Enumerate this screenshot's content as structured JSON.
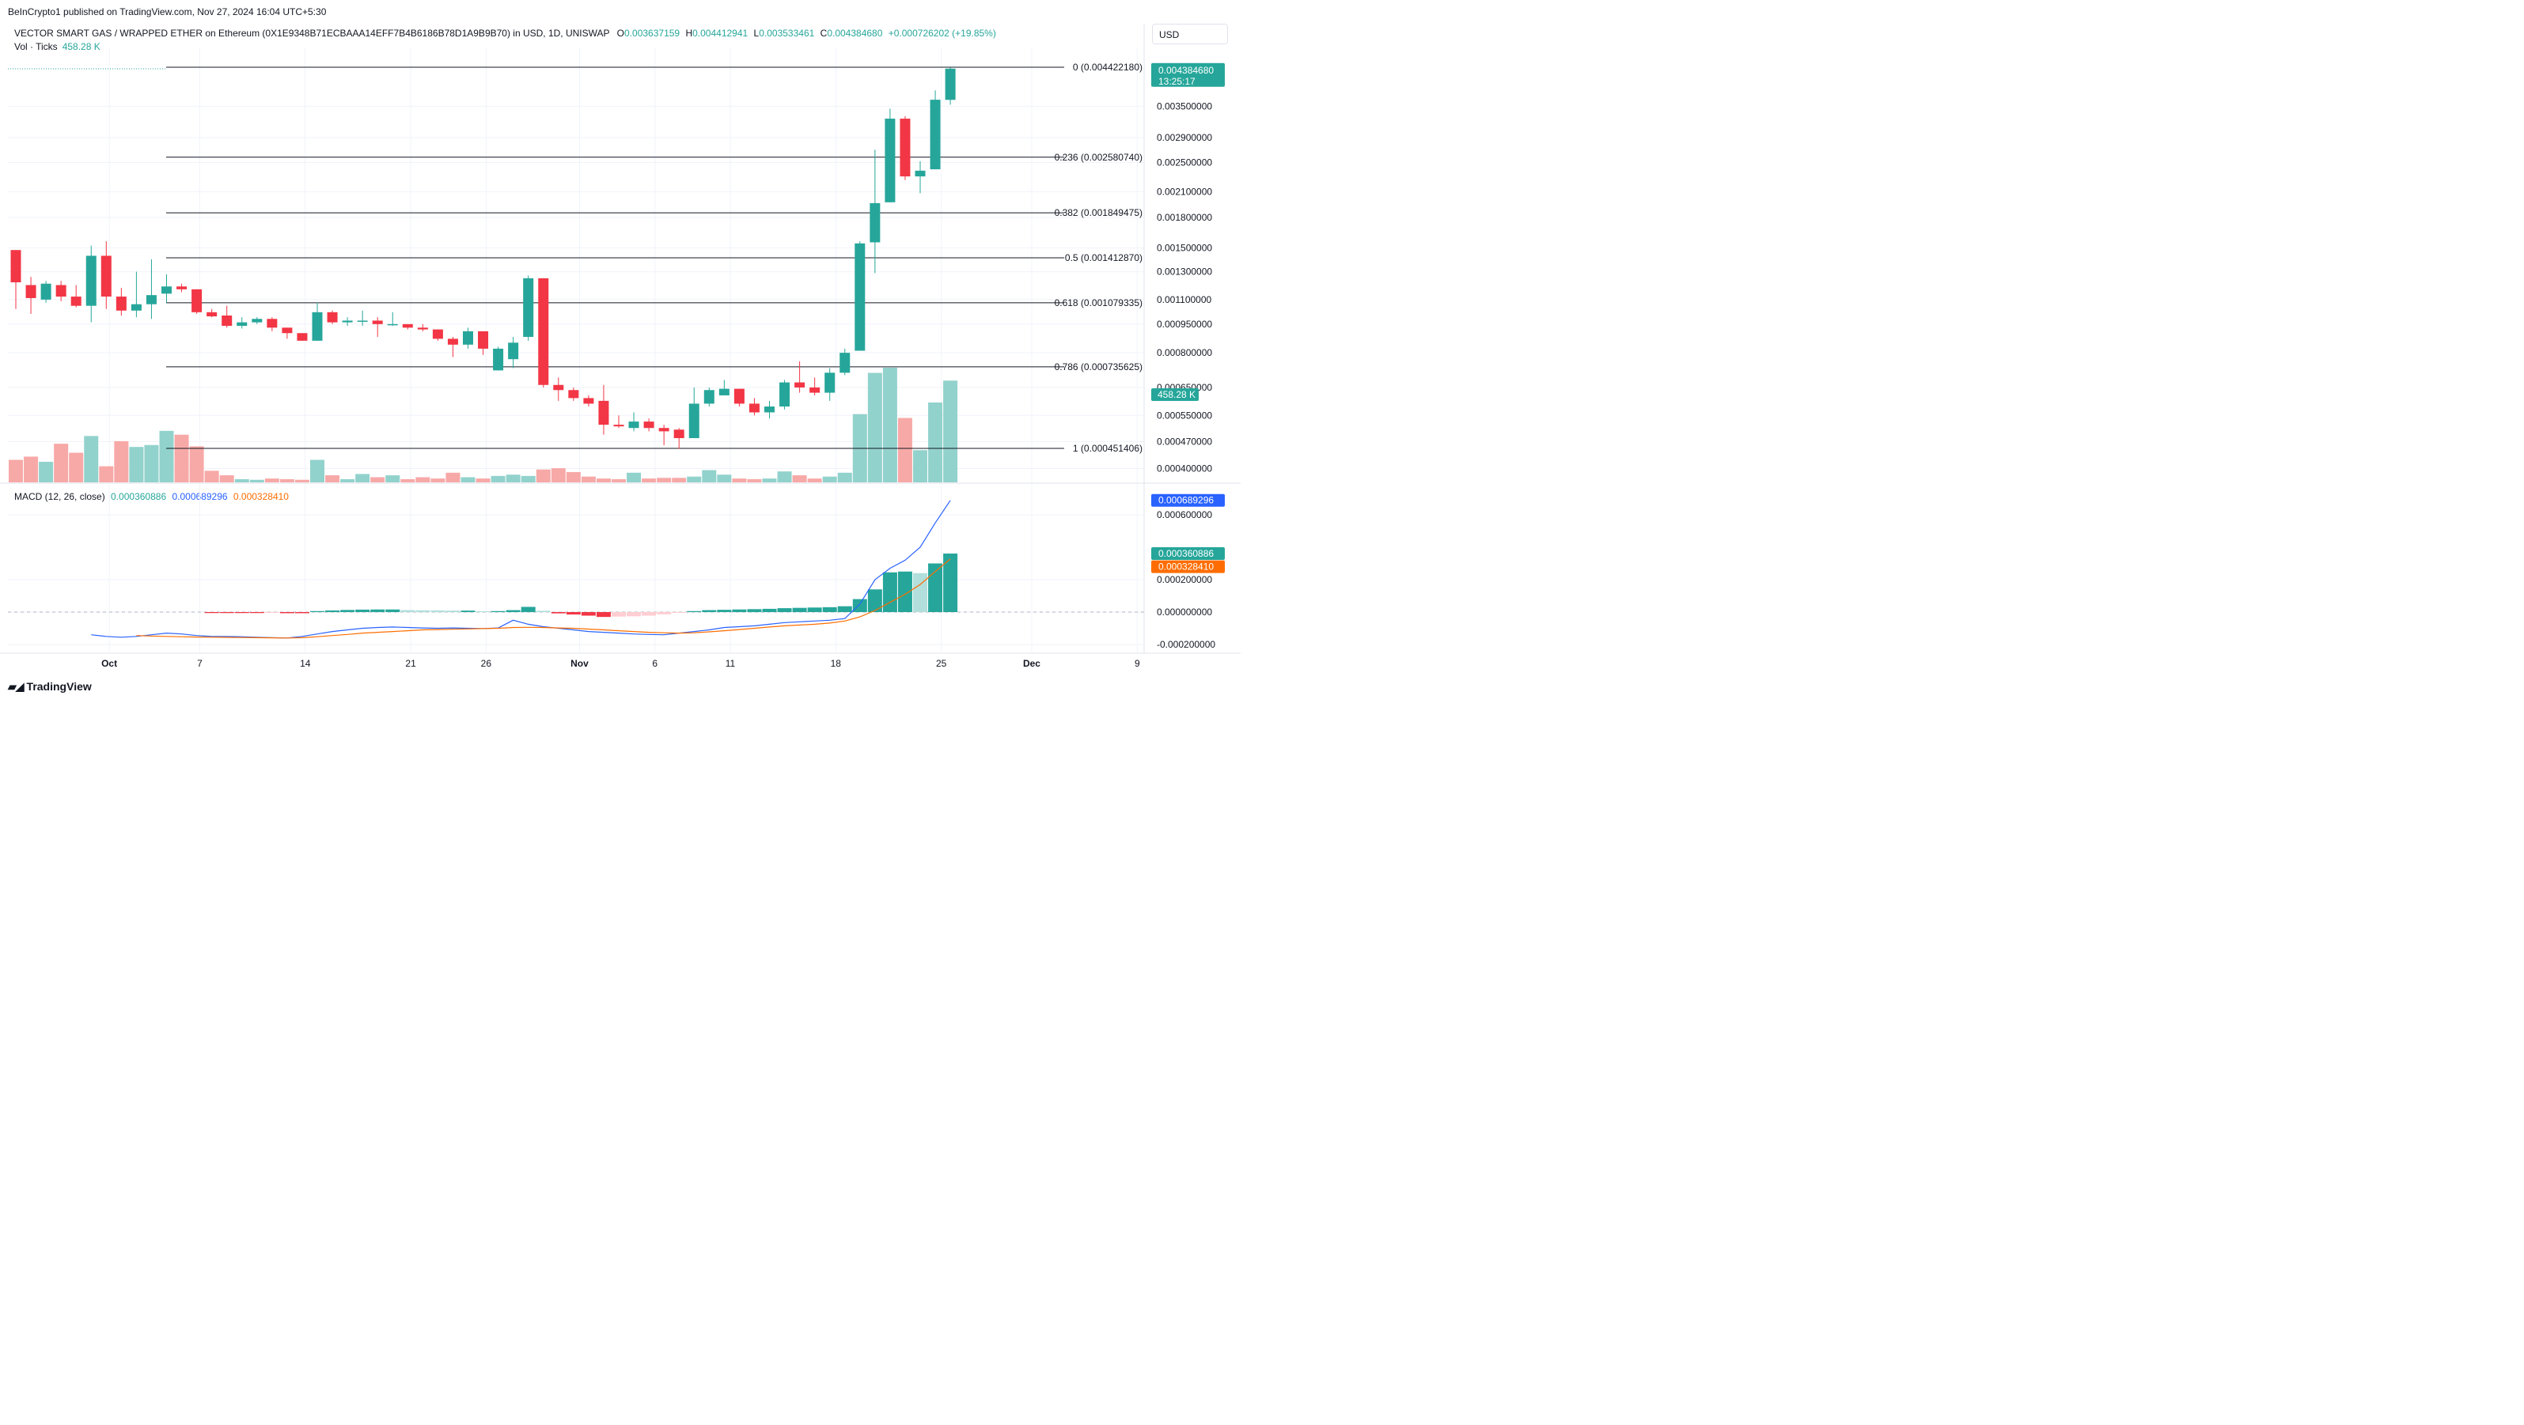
{
  "header": {
    "publisher": "BeInCrypto1 published on TradingView.com, Nov 27, 2024 16:04 UTC+5:30",
    "symbol": "VECTOR SMART GAS / WRAPPED ETHER on Ethereum (0X1E9348B71ECBAAA14EFF7B4B6186B78D1A9B9B70) in USD, 1D, UNISWAP",
    "ohlc": {
      "o_label": "O",
      "o_value": "0.003637159",
      "h_label": "H",
      "h_value": "0.004412941",
      "l_label": "L",
      "l_value": "0.003533461",
      "c_label": "C",
      "c_value": "0.004384680",
      "change": "+0.000726202 (+19.85%)"
    },
    "vol_label": "Vol · Ticks",
    "vol_value": "458.28 K",
    "currency": "USD"
  },
  "macd_legend": {
    "label": "MACD (12, 26, close)",
    "hist_value": "0.000360886",
    "macd_value": "0.000689296",
    "signal_value": "0.000328410"
  },
  "brand": "TradingView",
  "colors": {
    "up": "#26a69a",
    "down": "#f23645",
    "vol_up": "#92d2cc",
    "vol_down": "#f7a9a7",
    "macd": "#2962ff",
    "signal": "#ff6d00",
    "grid": "#f0f3fa",
    "fib": "#131722"
  },
  "chart_data": [
    {
      "type": "candlestick",
      "price_axis_labels": [
        "0.003500000",
        "0.002900000",
        "0.002500000",
        "0.002100000",
        "0.001800000",
        "0.001500000",
        "0.001300000",
        "0.001100000",
        "0.000950000",
        "0.000800000",
        "0.000650000",
        "0.000550000",
        "0.000470000",
        "0.000400000"
      ],
      "x_tick_labels": [
        "Oct",
        "7",
        "14",
        "21",
        "26",
        "Nov",
        "6",
        "11",
        "18",
        "25",
        "Dec",
        "9"
      ],
      "last_price_badge": "0.004384680",
      "countdown": "13:25:17",
      "volume_badge": "458.28 K",
      "fib_levels": [
        {
          "label": "0 (0.004422180)",
          "value": 0.00442218
        },
        {
          "label": "0.236 (0.002580740)",
          "value": 0.00258074
        },
        {
          "label": "0.382 (0.001849475)",
          "value": 0.001849475
        },
        {
          "label": "0.5 (0.001412870)",
          "value": 0.00141287
        },
        {
          "label": "0.618 (0.001079335)",
          "value": 0.001079335
        },
        {
          "label": "0.786 (0.000735625)",
          "value": 0.000735625
        },
        {
          "label": "1 (0.000451406)",
          "value": 0.000451406
        }
      ],
      "candles": [
        {
          "o": 0.00148,
          "h": 0.00148,
          "l": 0.00104,
          "c": 0.00122
        },
        {
          "o": 0.0012,
          "h": 0.00126,
          "l": 0.00101,
          "c": 0.00111
        },
        {
          "o": 0.0011,
          "h": 0.00123,
          "l": 0.00108,
          "c": 0.00121
        },
        {
          "o": 0.0012,
          "h": 0.00123,
          "l": 0.00109,
          "c": 0.00112
        },
        {
          "o": 0.00112,
          "h": 0.0012,
          "l": 0.00105,
          "c": 0.00106
        },
        {
          "o": 0.00106,
          "h": 0.00152,
          "l": 0.00096,
          "c": 0.00143
        },
        {
          "o": 0.00143,
          "h": 0.00156,
          "l": 0.00104,
          "c": 0.00112
        },
        {
          "o": 0.00112,
          "h": 0.00118,
          "l": 0.001,
          "c": 0.00103
        },
        {
          "o": 0.00103,
          "h": 0.0013,
          "l": 0.00099,
          "c": 0.00107
        },
        {
          "o": 0.00107,
          "h": 0.0014,
          "l": 0.00098,
          "c": 0.00113
        },
        {
          "o": 0.00114,
          "h": 0.00128,
          "l": 0.00108,
          "c": 0.00119
        },
        {
          "o": 0.00119,
          "h": 0.00121,
          "l": 0.00115,
          "c": 0.00117
        },
        {
          "o": 0.00117,
          "h": 0.00117,
          "l": 0.00101,
          "c": 0.00102
        },
        {
          "o": 0.00102,
          "h": 0.00104,
          "l": 0.00099,
          "c": 0.000995
        },
        {
          "o": 0.001,
          "h": 0.00106,
          "l": 0.00093,
          "c": 0.00094
        },
        {
          "o": 0.00094,
          "h": 0.00099,
          "l": 0.000925,
          "c": 0.00096
        },
        {
          "o": 0.00096,
          "h": 0.00099,
          "l": 0.00095,
          "c": 0.00098
        },
        {
          "o": 0.00098,
          "h": 0.00099,
          "l": 0.00091,
          "c": 0.00093
        },
        {
          "o": 0.00093,
          "h": 0.00093,
          "l": 0.00087,
          "c": 0.0009
        },
        {
          "o": 0.0009,
          "h": 0.0009,
          "l": 0.00086,
          "c": 0.00086
        },
        {
          "o": 0.00086,
          "h": 0.00108,
          "l": 0.00086,
          "c": 0.00102
        },
        {
          "o": 0.00102,
          "h": 0.00103,
          "l": 0.00095,
          "c": 0.00096
        },
        {
          "o": 0.00096,
          "h": 0.00099,
          "l": 0.00094,
          "c": 0.00097
        },
        {
          "o": 0.00097,
          "h": 0.00103,
          "l": 0.00094,
          "c": 0.00097
        },
        {
          "o": 0.00097,
          "h": 0.00099,
          "l": 0.00088,
          "c": 0.00095
        },
        {
          "o": 0.00095,
          "h": 0.00102,
          "l": 0.00094,
          "c": 0.00095
        },
        {
          "o": 0.00095,
          "h": 0.00095,
          "l": 0.00092,
          "c": 0.00093
        },
        {
          "o": 0.00093,
          "h": 0.00095,
          "l": 0.00091,
          "c": 0.00092
        },
        {
          "o": 0.00092,
          "h": 0.00092,
          "l": 0.00086,
          "c": 0.00087
        },
        {
          "o": 0.00087,
          "h": 0.00088,
          "l": 0.00078,
          "c": 0.00084
        },
        {
          "o": 0.00084,
          "h": 0.00093,
          "l": 0.00082,
          "c": 0.00091
        },
        {
          "o": 0.00091,
          "h": 0.00091,
          "l": 0.00079,
          "c": 0.00082
        },
        {
          "o": 0.00072,
          "h": 0.00083,
          "l": 0.00072,
          "c": 0.00082
        },
        {
          "o": 0.00077,
          "h": 0.00088,
          "l": 0.00073,
          "c": 0.00085
        },
        {
          "o": 0.00088,
          "h": 0.00127,
          "l": 0.00086,
          "c": 0.00125
        },
        {
          "o": 0.00125,
          "h": 0.00125,
          "l": 0.00065,
          "c": 0.00066
        },
        {
          "o": 0.00066,
          "h": 0.00069,
          "l": 0.0006,
          "c": 0.00064
        },
        {
          "o": 0.00064,
          "h": 0.00065,
          "l": 0.0006,
          "c": 0.00061
        },
        {
          "o": 0.00061,
          "h": 0.00062,
          "l": 0.00058,
          "c": 0.00059
        },
        {
          "o": 0.0006,
          "h": 0.00066,
          "l": 0.00049,
          "c": 0.00052
        },
        {
          "o": 0.00052,
          "h": 0.00055,
          "l": 0.00051,
          "c": 0.000515
        },
        {
          "o": 0.00051,
          "h": 0.00056,
          "l": 0.0005,
          "c": 0.00053
        },
        {
          "o": 0.00053,
          "h": 0.00054,
          "l": 0.0005,
          "c": 0.00051
        },
        {
          "o": 0.00051,
          "h": 0.00052,
          "l": 0.00046,
          "c": 0.0005
        },
        {
          "o": 0.000505,
          "h": 0.00051,
          "l": 0.00045,
          "c": 0.00048
        },
        {
          "o": 0.00048,
          "h": 0.00065,
          "l": 0.00048,
          "c": 0.00059
        },
        {
          "o": 0.00059,
          "h": 0.00065,
          "l": 0.00058,
          "c": 0.00064
        },
        {
          "o": 0.00062,
          "h": 0.00068,
          "l": 0.00062,
          "c": 0.000645
        },
        {
          "o": 0.000645,
          "h": 0.000645,
          "l": 0.00058,
          "c": 0.00059
        },
        {
          "o": 0.00059,
          "h": 0.00061,
          "l": 0.00055,
          "c": 0.00056
        },
        {
          "o": 0.00056,
          "h": 0.0006,
          "l": 0.00054,
          "c": 0.00058
        },
        {
          "o": 0.00058,
          "h": 0.00068,
          "l": 0.00057,
          "c": 0.00067
        },
        {
          "o": 0.00067,
          "h": 0.00076,
          "l": 0.00063,
          "c": 0.00065
        },
        {
          "o": 0.00065,
          "h": 0.00069,
          "l": 0.00062,
          "c": 0.00063
        },
        {
          "o": 0.00063,
          "h": 0.00073,
          "l": 0.0006,
          "c": 0.00071
        },
        {
          "o": 0.00071,
          "h": 0.00082,
          "l": 0.0007,
          "c": 0.0008
        },
        {
          "o": 0.00081,
          "h": 0.00156,
          "l": 0.00081,
          "c": 0.00154
        },
        {
          "o": 0.00155,
          "h": 0.0027,
          "l": 0.00129,
          "c": 0.00196
        },
        {
          "o": 0.00197,
          "h": 0.00345,
          "l": 0.00197,
          "c": 0.00325
        },
        {
          "o": 0.00325,
          "h": 0.0033,
          "l": 0.00225,
          "c": 0.0023
        },
        {
          "o": 0.0023,
          "h": 0.00252,
          "l": 0.00208,
          "c": 0.00238
        },
        {
          "o": 0.0024,
          "h": 0.00385,
          "l": 0.0024,
          "c": 0.00364
        },
        {
          "o": 0.003637159,
          "h": 0.004412941,
          "l": 0.003533461,
          "c": 0.00438468
        }
      ],
      "volumes_k": [
        35,
        40,
        32,
        60,
        46,
        72,
        25,
        64,
        55,
        58,
        80,
        74,
        56,
        18,
        11,
        5,
        4,
        6,
        5,
        4,
        35,
        11,
        5,
        13,
        8,
        11,
        5,
        8,
        6,
        15,
        8,
        6,
        10,
        12,
        10,
        20,
        22,
        16,
        9,
        6,
        5,
        15,
        6,
        7,
        7,
        9,
        19,
        12,
        6,
        5,
        6,
        17,
        11,
        6,
        9,
        15,
        106,
        170,
        178,
        100,
        50,
        124,
        158
      ]
    },
    {
      "type": "macd",
      "label": "MACD (12, 26, close)",
      "axis_labels": [
        "0.000600000",
        "0.000200000",
        "0.000000000",
        "-0.000200000"
      ],
      "macd_badge": "0.000689296",
      "hist_badge": "0.000360886",
      "signal_badge": "0.000328410",
      "histogram": [
        0,
        0,
        0,
        0,
        0,
        0,
        0,
        0,
        0,
        0,
        0,
        0,
        0,
        -6e-06,
        -6e-06,
        -6e-06,
        -6e-06,
        -5e-06,
        -7e-06,
        -7e-06,
        6e-06,
        1e-05,
        1.3e-05,
        1.5e-05,
        1.6e-05,
        1.6e-05,
        1.2e-05,
        1.1e-05,
        1e-05,
        9e-06,
        9e-06,
        5e-06,
        6e-06,
        1.2e-05,
        3.2e-05,
        8e-06,
        -8e-06,
        -1.5e-05,
        -2.2e-05,
        -3e-05,
        -2.8e-05,
        -2.6e-05,
        -2.2e-05,
        -1.4e-05,
        -4e-06,
        6e-06,
        1.2e-05,
        1.4e-05,
        1.6e-05,
        1.8e-05,
        2e-05,
        2.4e-05,
        2.6e-05,
        2.8e-05,
        3e-05,
        3.6e-05,
        8e-05,
        0.00014,
        0.000245,
        0.00025,
        0.00024,
        0.0003,
        0.000361
      ],
      "macd": [
        0,
        0,
        0,
        0,
        0,
        -0.00014,
        -0.00015,
        -0.000155,
        -0.00015,
        -0.00014,
        -0.00013,
        -0.000135,
        -0.000145,
        -0.00015,
        -0.00015,
        -0.000152,
        -0.000155,
        -0.000158,
        -0.00016,
        -0.00015,
        -0.000135,
        -0.00012,
        -0.00011,
        -0.0001,
        -9.5e-05,
        -9.2e-05,
        -9.5e-05,
        -9.8e-05,
        -0.0001,
        -9.8e-05,
        -0.0001,
        -0.000102,
        -9.8e-05,
        -5e-05,
        -7.5e-05,
        -9e-05,
        -0.0001,
        -0.00011,
        -0.00012,
        -0.000125,
        -0.00013,
        -0.000135,
        -0.000138,
        -0.00014,
        -0.00013,
        -0.00012,
        -0.00011,
        -9.5e-05,
        -9e-05,
        -8.5e-05,
        -7.5e-05,
        -6.5e-05,
        -6e-05,
        -5.5e-05,
        -5e-05,
        -4e-05,
        5e-05,
        0.0002,
        0.00027,
        0.00032,
        0.0004,
        0.00055,
        0.000689
      ],
      "signal": [
        0,
        0,
        0,
        0,
        0,
        0,
        0,
        0,
        -0.000145,
        -0.000148,
        -0.00015,
        -0.000152,
        -0.000154,
        -0.000155,
        -0.000156,
        -0.000157,
        -0.000158,
        -0.000159,
        -0.00016,
        -0.000158,
        -0.000152,
        -0.000145,
        -0.000138,
        -0.00013,
        -0.000125,
        -0.00012,
        -0.000115,
        -0.00011,
        -0.000108,
        -0.000106,
        -0.000104,
        -0.000102,
        -0.0001,
        -9.5e-05,
        -9.4e-05,
        -9.5e-05,
        -9.8e-05,
        -0.0001,
        -0.000105,
        -0.00011,
        -0.000115,
        -0.00012,
        -0.000125,
        -0.000128,
        -0.00013,
        -0.000128,
        -0.000122,
        -0.000115,
        -0.000108,
        -0.0001,
        -9.2e-05,
        -8.5e-05,
        -8e-05,
        -7.5e-05,
        -6.8e-05,
        -5.5e-05,
        -3e-05,
        1e-05,
        6e-05,
        0.00011,
        0.00017,
        0.00025,
        0.000328
      ]
    }
  ]
}
